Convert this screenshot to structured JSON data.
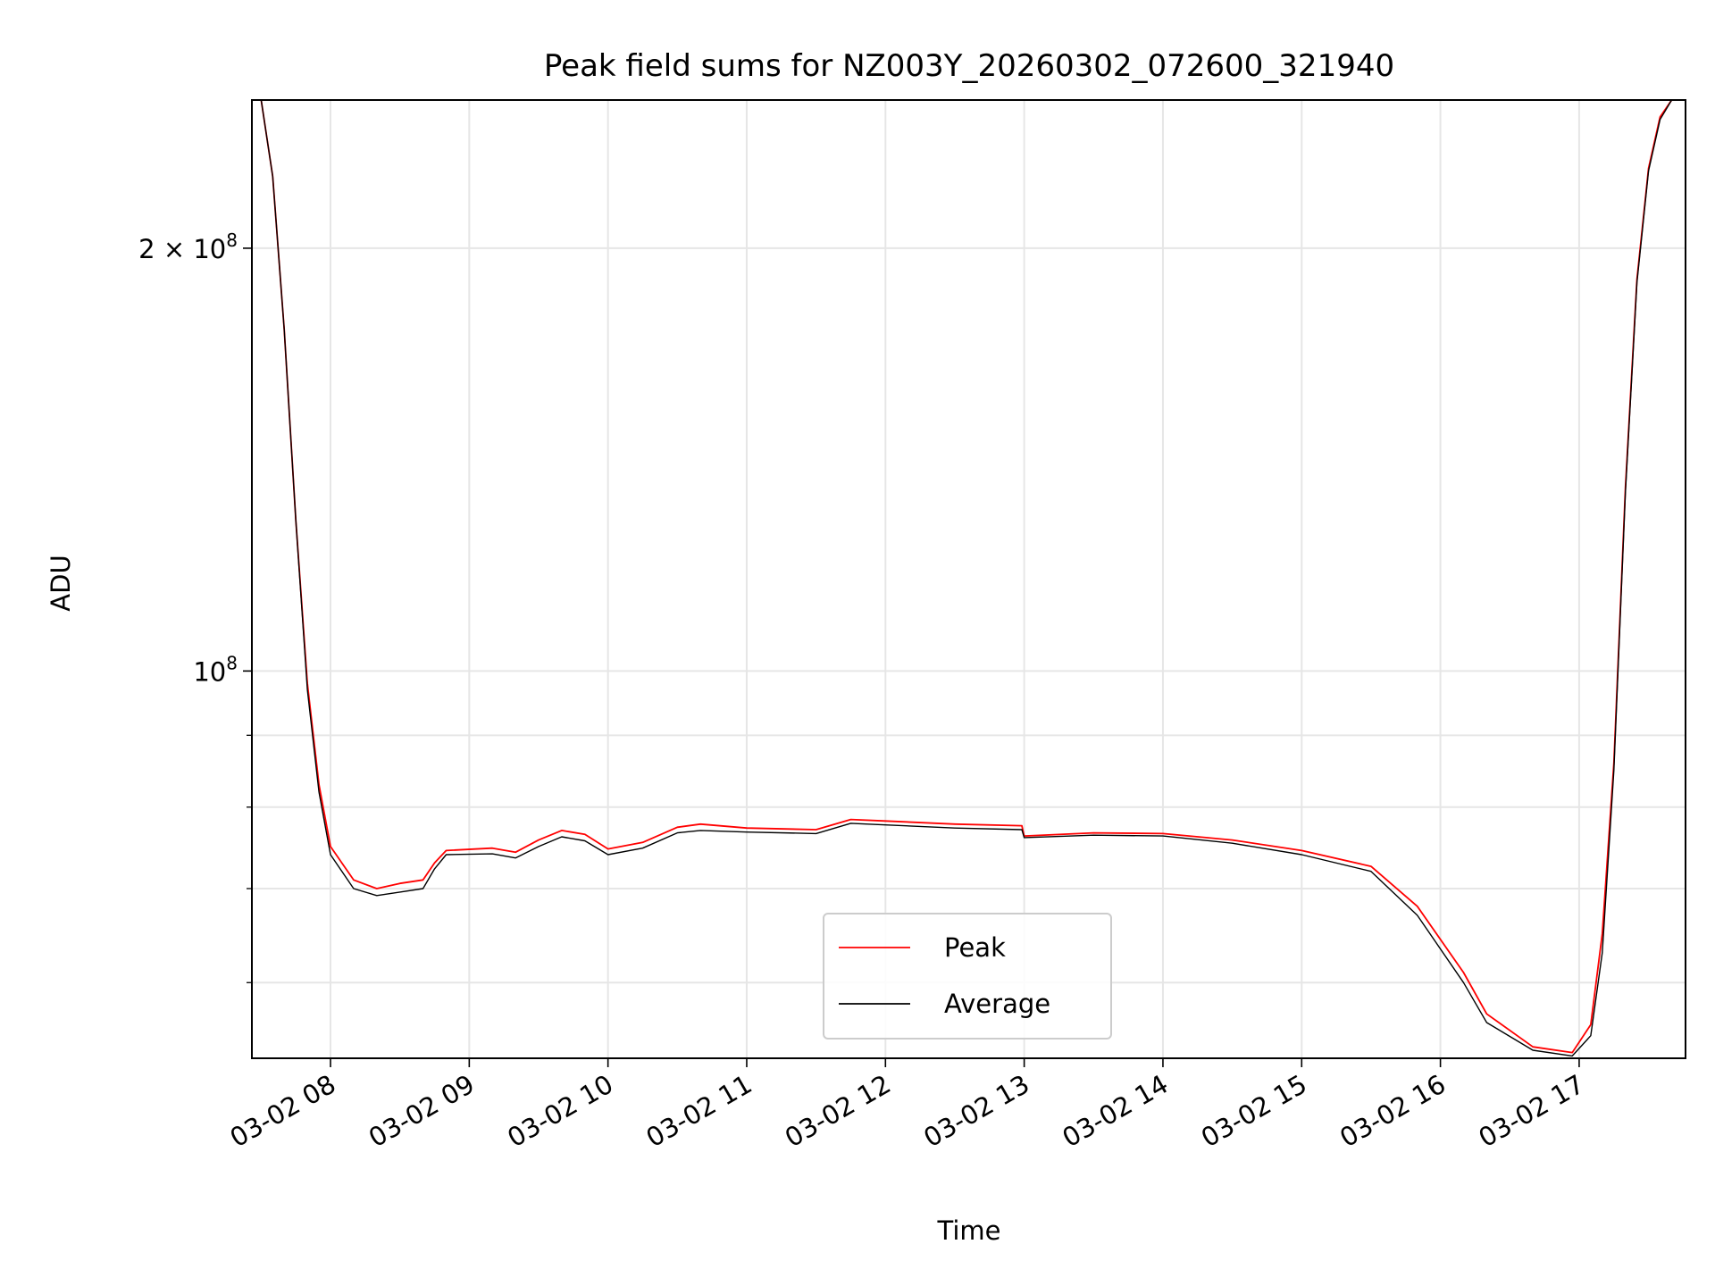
{
  "chart_data": {
    "type": "line",
    "title": "Peak field sums for NZ003Y_20260302_072600_321940",
    "xlabel": "Time",
    "ylabel": "ADU",
    "y_scale": "log",
    "grid": true,
    "legend_position": "bottom-center",
    "x_range": [
      "2026-03-02T07:26",
      "2026-03-02T17:46"
    ],
    "ylim": [
      53000000,
      255000000
    ],
    "x_ticks": [
      {
        "label": "03-02 08",
        "t": "2026-03-02T08:00"
      },
      {
        "label": "03-02 09",
        "t": "2026-03-02T09:00"
      },
      {
        "label": "03-02 10",
        "t": "2026-03-02T10:00"
      },
      {
        "label": "03-02 11",
        "t": "2026-03-02T11:00"
      },
      {
        "label": "03-02 12",
        "t": "2026-03-02T12:00"
      },
      {
        "label": "03-02 13",
        "t": "2026-03-02T13:00"
      },
      {
        "label": "03-02 14",
        "t": "2026-03-02T14:00"
      },
      {
        "label": "03-02 15",
        "t": "2026-03-02T15:00"
      },
      {
        "label": "03-02 16",
        "t": "2026-03-02T16:00"
      },
      {
        "label": "03-02 17",
        "t": "2026-03-02T17:00"
      }
    ],
    "y_ticks_major": [
      {
        "value": 100000000,
        "base": "10",
        "exp": "8",
        "coef": ""
      },
      {
        "value": 200000000,
        "base": "10",
        "exp": "8",
        "coef": "2 × "
      }
    ],
    "y_ticks_minor": [
      60000000,
      70000000,
      80000000,
      90000000
    ],
    "series": [
      {
        "name": "Peak",
        "color": "#ff0000",
        "points": [
          [
            "2026-03-02T07:26",
            255000000
          ],
          [
            "2026-03-02T07:30",
            255000000
          ],
          [
            "2026-03-02T07:35",
            225000000
          ],
          [
            "2026-03-02T07:40",
            175000000
          ],
          [
            "2026-03-02T07:45",
            128000000
          ],
          [
            "2026-03-02T07:50",
            98000000
          ],
          [
            "2026-03-02T07:55",
            83000000
          ],
          [
            "2026-03-02T08:00",
            75000000
          ],
          [
            "2026-03-02T08:10",
            71000000
          ],
          [
            "2026-03-02T08:20",
            70000000
          ],
          [
            "2026-03-02T08:30",
            70600000
          ],
          [
            "2026-03-02T08:40",
            71000000
          ],
          [
            "2026-03-02T08:45",
            73000000
          ],
          [
            "2026-03-02T08:50",
            74500000
          ],
          [
            "2026-03-02T09:10",
            74800000
          ],
          [
            "2026-03-02T09:20",
            74300000
          ],
          [
            "2026-03-02T09:30",
            75800000
          ],
          [
            "2026-03-02T09:40",
            77000000
          ],
          [
            "2026-03-02T09:50",
            76500000
          ],
          [
            "2026-03-02T10:00",
            74700000
          ],
          [
            "2026-03-02T10:15",
            75500000
          ],
          [
            "2026-03-02T10:30",
            77400000
          ],
          [
            "2026-03-02T10:40",
            77800000
          ],
          [
            "2026-03-02T11:00",
            77300000
          ],
          [
            "2026-03-02T11:30",
            77100000
          ],
          [
            "2026-03-02T11:45",
            78400000
          ],
          [
            "2026-03-02T12:00",
            78200000
          ],
          [
            "2026-03-02T12:30",
            77800000
          ],
          [
            "2026-03-02T12:59",
            77600000
          ],
          [
            "2026-03-02T13:00",
            76300000
          ],
          [
            "2026-03-02T13:30",
            76700000
          ],
          [
            "2026-03-02T14:00",
            76600000
          ],
          [
            "2026-03-02T14:30",
            75800000
          ],
          [
            "2026-03-02T15:00",
            74500000
          ],
          [
            "2026-03-02T15:30",
            72600000
          ],
          [
            "2026-03-02T15:50",
            68000000
          ],
          [
            "2026-03-02T16:10",
            61000000
          ],
          [
            "2026-03-02T16:20",
            57000000
          ],
          [
            "2026-03-02T16:40",
            54000000
          ],
          [
            "2026-03-02T16:57",
            53500000
          ],
          [
            "2026-03-02T17:05",
            56000000
          ],
          [
            "2026-03-02T17:10",
            65000000
          ],
          [
            "2026-03-02T17:15",
            86000000
          ],
          [
            "2026-03-02T17:20",
            135000000
          ],
          [
            "2026-03-02T17:25",
            190000000
          ],
          [
            "2026-03-02T17:30",
            228000000
          ],
          [
            "2026-03-02T17:35",
            248000000
          ],
          [
            "2026-03-02T17:40",
            255000000
          ],
          [
            "2026-03-02T17:46",
            255000000
          ]
        ]
      },
      {
        "name": "Average",
        "color": "#000000",
        "points": [
          [
            "2026-03-02T07:26",
            255000000
          ],
          [
            "2026-03-02T07:30",
            255000000
          ],
          [
            "2026-03-02T07:35",
            225000000
          ],
          [
            "2026-03-02T07:40",
            175000000
          ],
          [
            "2026-03-02T07:45",
            128000000
          ],
          [
            "2026-03-02T07:50",
            97000000
          ],
          [
            "2026-03-02T07:55",
            82000000
          ],
          [
            "2026-03-02T08:00",
            74000000
          ],
          [
            "2026-03-02T08:10",
            70000000
          ],
          [
            "2026-03-02T08:20",
            69200000
          ],
          [
            "2026-03-02T08:30",
            69600000
          ],
          [
            "2026-03-02T08:40",
            70000000
          ],
          [
            "2026-03-02T08:45",
            72300000
          ],
          [
            "2026-03-02T08:50",
            74000000
          ],
          [
            "2026-03-02T09:10",
            74100000
          ],
          [
            "2026-03-02T09:20",
            73600000
          ],
          [
            "2026-03-02T09:30",
            75000000
          ],
          [
            "2026-03-02T09:40",
            76200000
          ],
          [
            "2026-03-02T09:50",
            75700000
          ],
          [
            "2026-03-02T10:00",
            74000000
          ],
          [
            "2026-03-02T10:15",
            74800000
          ],
          [
            "2026-03-02T10:30",
            76700000
          ],
          [
            "2026-03-02T10:40",
            77000000
          ],
          [
            "2026-03-02T11:00",
            76800000
          ],
          [
            "2026-03-02T11:30",
            76600000
          ],
          [
            "2026-03-02T11:45",
            77900000
          ],
          [
            "2026-03-02T12:00",
            77700000
          ],
          [
            "2026-03-02T12:30",
            77300000
          ],
          [
            "2026-03-02T12:59",
            77100000
          ],
          [
            "2026-03-02T13:00",
            76100000
          ],
          [
            "2026-03-02T13:30",
            76400000
          ],
          [
            "2026-03-02T14:00",
            76300000
          ],
          [
            "2026-03-02T14:30",
            75400000
          ],
          [
            "2026-03-02T15:00",
            74000000
          ],
          [
            "2026-03-02T15:30",
            72000000
          ],
          [
            "2026-03-02T15:50",
            67000000
          ],
          [
            "2026-03-02T16:10",
            60000000
          ],
          [
            "2026-03-02T16:20",
            56200000
          ],
          [
            "2026-03-02T16:40",
            53700000
          ],
          [
            "2026-03-02T16:57",
            53200000
          ],
          [
            "2026-03-02T17:05",
            55000000
          ],
          [
            "2026-03-02T17:10",
            63000000
          ],
          [
            "2026-03-02T17:15",
            85000000
          ],
          [
            "2026-03-02T17:20",
            134000000
          ],
          [
            "2026-03-02T17:25",
            189000000
          ],
          [
            "2026-03-02T17:30",
            227000000
          ],
          [
            "2026-03-02T17:35",
            247000000
          ],
          [
            "2026-03-02T17:40",
            255000000
          ],
          [
            "2026-03-02T17:46",
            255000000
          ]
        ]
      }
    ]
  }
}
